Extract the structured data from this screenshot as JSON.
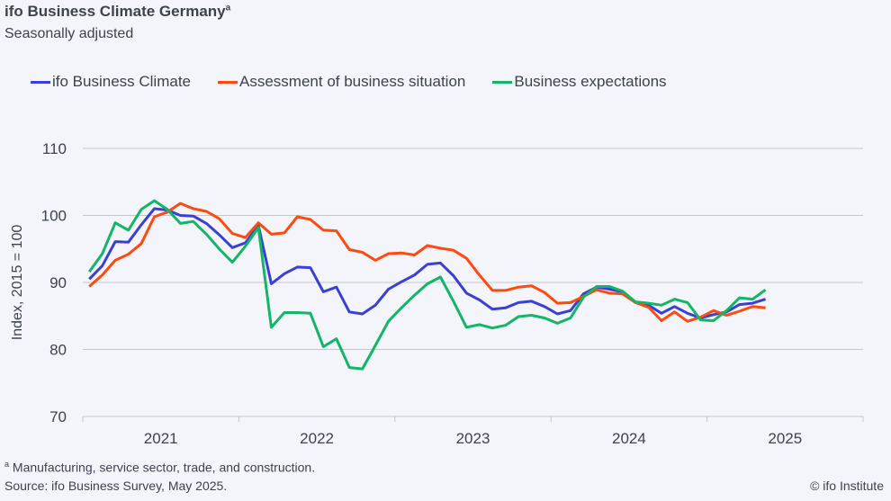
{
  "header": {
    "title": "ifo Business Climate Germany",
    "title_superscript": "a",
    "subtitle": "Seasonally adjusted"
  },
  "footer": {
    "footnote_marker": "a",
    "footnote": "Manufacturing, service sector, trade, and construction.",
    "source": "Source: ifo Business Survey, May 2025.",
    "copyright": "© ifo Institute"
  },
  "chart_data": {
    "type": "line",
    "title": "ifo Business Climate Germany",
    "subtitle": "Seasonally adjusted",
    "xlabel": "",
    "ylabel": "Index, 2015 = 100",
    "ylim": [
      70,
      110
    ],
    "yticks": [
      70,
      80,
      90,
      100,
      110
    ],
    "xtick_labels": [
      "2021",
      "2022",
      "2023",
      "2024",
      "2025"
    ],
    "x_start": "2021-01",
    "x_frequency": "monthly",
    "x_months_total": 60,
    "grid": true,
    "legend_position": "top",
    "series": [
      {
        "name": "ifo Business Climate",
        "color": "#3a3fd6",
        "values": [
          90.5,
          92.5,
          96.1,
          96.0,
          98.6,
          101.0,
          100.8,
          100.0,
          99.9,
          98.8,
          97.1,
          95.2,
          95.9,
          98.5,
          89.8,
          91.3,
          92.3,
          92.2,
          88.6,
          89.3,
          85.6,
          85.3,
          86.6,
          89.0,
          90.1,
          91.1,
          92.7,
          92.9,
          91.0,
          88.4,
          87.4,
          86.0,
          86.2,
          87.0,
          87.2,
          86.4,
          85.3,
          85.8,
          88.3,
          89.3,
          89.0,
          88.6,
          87.0,
          86.6,
          85.4,
          86.4,
          85.4,
          84.7,
          85.2,
          85.6,
          86.7,
          86.9,
          87.5
        ]
      },
      {
        "name": "Assessment of business situation",
        "color": "#ff4a0f",
        "values": [
          89.4,
          91.1,
          93.3,
          94.2,
          95.8,
          99.8,
          100.5,
          101.8,
          101.0,
          100.6,
          99.5,
          97.3,
          96.7,
          98.9,
          97.2,
          97.4,
          99.8,
          99.4,
          97.8,
          97.7,
          94.9,
          94.5,
          93.3,
          94.3,
          94.4,
          94.1,
          95.5,
          95.1,
          94.8,
          93.6,
          91.1,
          88.8,
          88.8,
          89.3,
          89.5,
          88.5,
          86.9,
          87.0,
          87.9,
          88.9,
          88.4,
          88.3,
          87.0,
          86.3,
          84.3,
          85.6,
          84.2,
          84.8,
          85.8,
          85.1,
          85.7,
          86.4,
          86.2
        ]
      },
      {
        "name": "Business expectations",
        "color": "#13b567",
        "values": [
          91.6,
          94.3,
          98.9,
          97.8,
          100.9,
          102.2,
          100.9,
          98.8,
          99.1,
          97.2,
          95.0,
          93.0,
          95.4,
          98.2,
          83.3,
          85.5,
          85.5,
          85.4,
          80.4,
          81.6,
          77.3,
          77.1,
          80.6,
          84.2,
          86.2,
          88.1,
          89.8,
          90.8,
          87.2,
          83.3,
          83.7,
          83.2,
          83.6,
          84.9,
          85.1,
          84.7,
          83.9,
          84.7,
          87.8,
          89.4,
          89.4,
          88.7,
          87.1,
          86.9,
          86.6,
          87.5,
          87.0,
          84.4,
          84.3,
          85.8,
          87.7,
          87.5,
          88.9
        ]
      }
    ]
  }
}
